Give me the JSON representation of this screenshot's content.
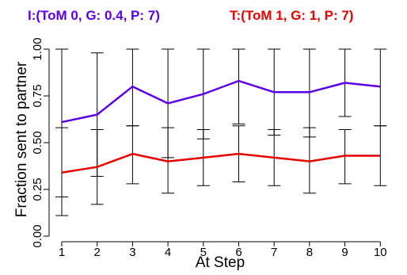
{
  "chart_data": {
    "type": "line",
    "title": "",
    "xlabel": "At Step",
    "ylabel": "Fraction sent to partner",
    "x": [
      1,
      2,
      3,
      4,
      5,
      6,
      7,
      8,
      9,
      10
    ],
    "xticks": [
      "1",
      "2",
      "3",
      "4",
      "5",
      "6",
      "7",
      "8",
      "9",
      "10"
    ],
    "yticks": [
      "0.00",
      "0.25",
      "0.50",
      "0.75",
      "1.00"
    ],
    "ylim": [
      0,
      1
    ],
    "grid": false,
    "legend_position": "top",
    "series": [
      {
        "name": "I:(ToM 0, G: 0.4, P: 7)",
        "color": "#5b00e6",
        "values": [
          0.61,
          0.65,
          0.8,
          0.71,
          0.76,
          0.83,
          0.77,
          0.77,
          0.82,
          0.8
        ],
        "upper": [
          1.0,
          0.98,
          1.0,
          1.0,
          1.0,
          1.0,
          1.0,
          1.0,
          1.0,
          1.0
        ],
        "lower": [
          0.21,
          0.32,
          0.59,
          0.42,
          0.52,
          0.6,
          0.54,
          0.53,
          0.64,
          0.59
        ]
      },
      {
        "name": "T:(ToM 1, G: 1, P: 7)",
        "color": "#e60000",
        "values": [
          0.34,
          0.37,
          0.44,
          0.4,
          0.42,
          0.44,
          0.42,
          0.4,
          0.43,
          0.43
        ],
        "upper": [
          0.58,
          0.57,
          0.59,
          0.58,
          0.57,
          0.59,
          0.57,
          0.58,
          0.57,
          0.59
        ],
        "lower": [
          0.11,
          0.17,
          0.28,
          0.23,
          0.27,
          0.29,
          0.27,
          0.23,
          0.28,
          0.27
        ]
      }
    ]
  }
}
